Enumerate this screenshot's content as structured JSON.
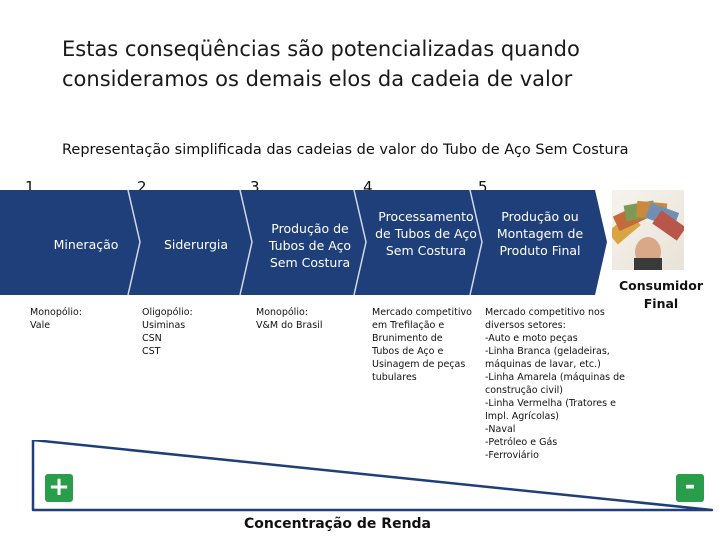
{
  "title": "Estas conseqüências são potencializadas quando consideramos os demais elos da cadeia de valor",
  "subtitle": "Representação simplificada das cadeias de valor do Tubo de Aço Sem Costura",
  "stages": [
    {
      "number": "1",
      "label": "Mineração",
      "note": "Monopólio:\nVale"
    },
    {
      "number": "2",
      "label": "Siderurgia",
      "note": "Oligopólio:\nUsiminas\nCSN\nCST"
    },
    {
      "number": "3",
      "label": "Produção de Tubos de Aço Sem Costura",
      "note": "Monopólio:\nV&M do Brasil"
    },
    {
      "number": "4",
      "label": "Processamento de Tubos de Aço Sem Costura",
      "note": "Mercado competitivo em Trefilação e Brunimento de Tubos de Aço e Usinagem de peças tubulares"
    },
    {
      "number": "5",
      "label": "Produção ou Montagem de Produto Final",
      "note": "Mercado competitivo nos diversos setores:\n-Auto e moto peças\n-Linha Branca (geladeiras, máquinas de lavar, etc.)\n-Linha Amarela (máquinas de construção civil)\n-Linha Vermelha (Tratores e Impl. Agrícolas)\n-Naval\n-Petróleo e Gás\n-Ferroviário"
    }
  ],
  "consumer_label": "Consumidor Final",
  "photo_icon": "money-hand-icon",
  "plus_sign": "+",
  "minus_sign": "-",
  "concentration_label": "Concentração de Renda",
  "colors": {
    "chain": "#1f3f7a",
    "divider": "#cfd8ea",
    "wedge": "#1f3f7a",
    "sign": "#2a9d4a"
  }
}
